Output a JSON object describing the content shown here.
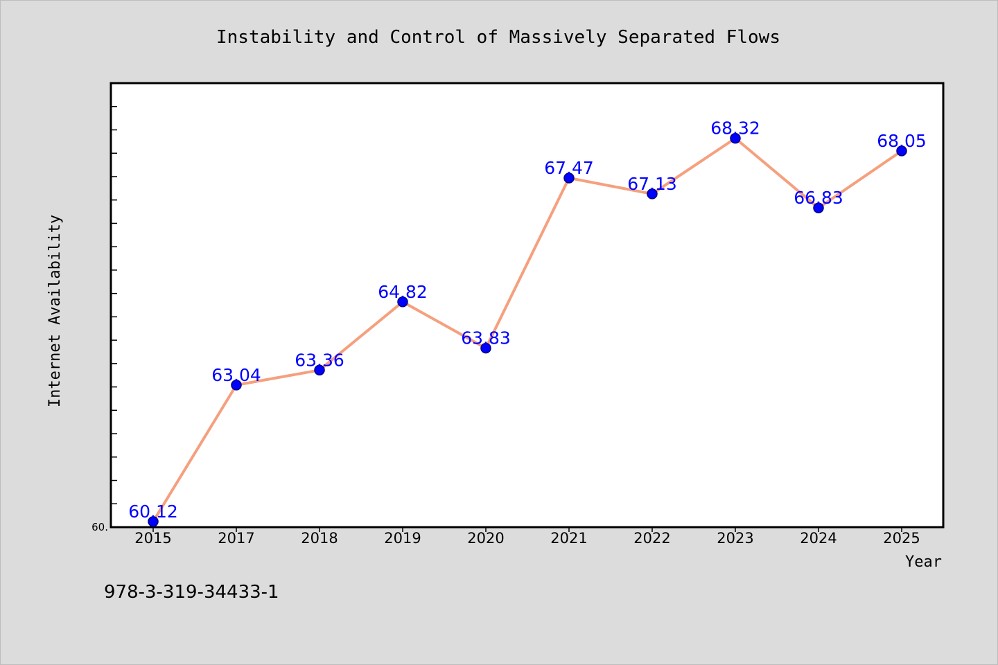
{
  "colors": {
    "background": "#dcdcdc",
    "plot_background": "#ffffff",
    "line": "#f5a07e",
    "marker": "#0000ff",
    "marker_edge": "#000080",
    "data_label": "#0000ff"
  },
  "footer": {
    "isbn": "978-3-319-34433-1"
  },
  "chart_data": {
    "type": "line",
    "title": "Instability and Control of Massively Separated Flows",
    "xlabel": "Year",
    "ylabel": "Internet Availability",
    "categories": [
      "2015",
      "2017",
      "2018",
      "2019",
      "2020",
      "2021",
      "2022",
      "2023",
      "2024",
      "2025"
    ],
    "series": [
      {
        "values": [
          60.12,
          63.04,
          63.36,
          64.82,
          63.83,
          67.47,
          67.13,
          68.32,
          66.83,
          68.05
        ],
        "data_labels": [
          "60.12",
          "63.04",
          "63.36",
          "64.82",
          "63.83",
          "67.47",
          "67.13",
          "68.32",
          "66.83",
          "68.05"
        ]
      }
    ],
    "ylim": [
      60,
      69.5
    ],
    "y_tick_label": "60.",
    "y_minor_tick_step": 0.5,
    "grid": false,
    "legend": "none",
    "markers": true,
    "data_labels": true
  }
}
